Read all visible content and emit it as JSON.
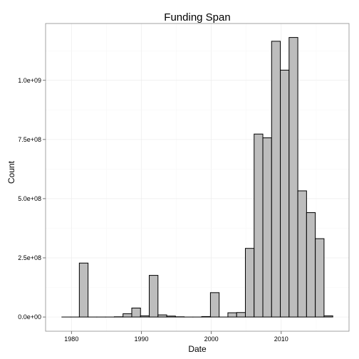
{
  "chart_data": {
    "type": "bar",
    "title": "Funding Span",
    "xlabel": "Date",
    "ylabel": "Count",
    "xlim": [
      1976.3,
      2019.7
    ],
    "ylim": [
      -60000000,
      1240000000
    ],
    "grid": true,
    "x_ticks": [
      1980,
      1990,
      2000,
      2010
    ],
    "x_tick_labels": [
      "1980",
      "1990",
      "2000",
      "2010"
    ],
    "y_ticks": [
      0,
      250000000,
      500000000,
      750000000,
      1000000000
    ],
    "y_tick_labels": [
      "0.0e+00",
      "2.5e+08",
      "5.0e+08",
      "7.5e+08",
      "1.0e+09"
    ],
    "bin_width": 1.25,
    "bin_centers": [
      1979.25,
      1980.5,
      1981.75,
      1983.0,
      1984.25,
      1985.5,
      1986.75,
      1988.0,
      1989.25,
      1990.5,
      1991.75,
      1993.0,
      1994.25,
      1995.5,
      1996.75,
      1998.0,
      1999.25,
      2000.5,
      2001.75,
      2003.0,
      2004.25,
      2005.5,
      2006.75,
      2008.0,
      2009.25,
      2010.5,
      2011.75,
      2013.0,
      2014.25,
      2015.5,
      2016.75
    ],
    "values": [
      0,
      0,
      228000000,
      0,
      0,
      0,
      1000000,
      14000000,
      38000000,
      5000000,
      176000000,
      9000000,
      4000000,
      1000000,
      0,
      0,
      2000000,
      103000000,
      0,
      18000000,
      19000000,
      290000000,
      773000000,
      757000000,
      1165000000,
      1043000000,
      1181000000,
      533000000,
      441000000,
      331000000,
      5000000
    ]
  }
}
